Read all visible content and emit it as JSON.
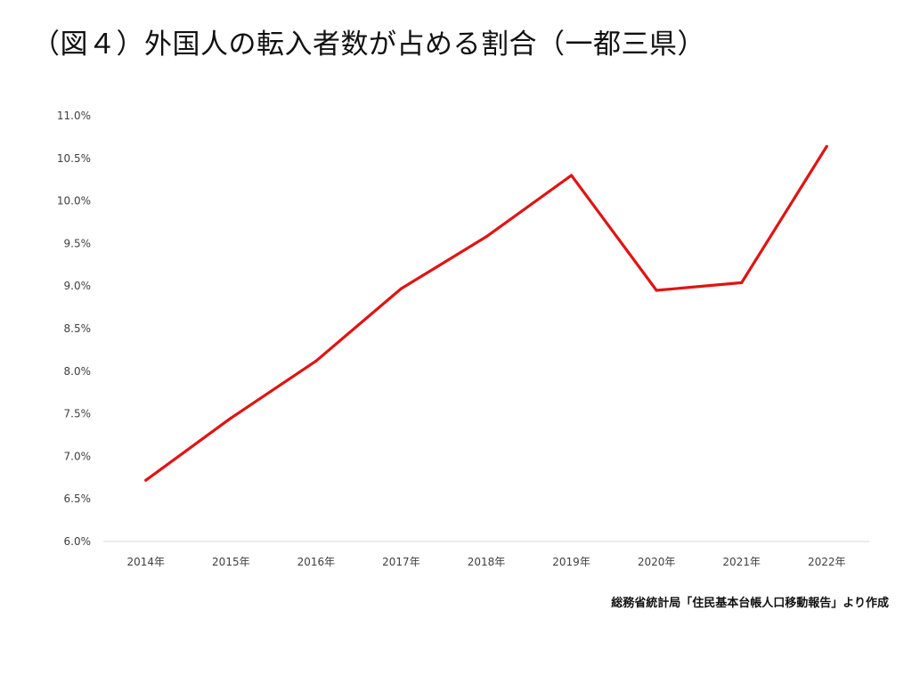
{
  "title": "（図４）外国人の転入者数が占める割合（一都三県）",
  "source": "総務省統計局「住民基本台帳人口移動報告」より作成",
  "chart_data": {
    "type": "line",
    "title": "（図４）外国人の転入者数が占める割合（一都三県）",
    "xlabel": "",
    "ylabel": "",
    "categories": [
      "2014年",
      "2015年",
      "2016年",
      "2017年",
      "2018年",
      "2019年",
      "2020年",
      "2021年",
      "2022年"
    ],
    "series": [
      {
        "values": [
          6.72,
          7.45,
          8.12,
          8.97,
          9.58,
          10.3,
          8.95,
          9.04,
          10.64
        ],
        "color": "#e01414"
      }
    ],
    "ylim": [
      6.0,
      11.0
    ],
    "yticks": [
      6.0,
      6.5,
      7.0,
      7.5,
      8.0,
      8.5,
      9.0,
      9.5,
      10.0,
      10.5,
      11.0
    ],
    "ytick_labels": [
      "6.0%",
      "6.5%",
      "7.0%",
      "7.5%",
      "8.0%",
      "8.5%",
      "9.0%",
      "9.5%",
      "10.0%",
      "10.5%",
      "11.0%"
    ],
    "grid": false,
    "legend": "none",
    "axis_color": "#d9d9d9"
  }
}
